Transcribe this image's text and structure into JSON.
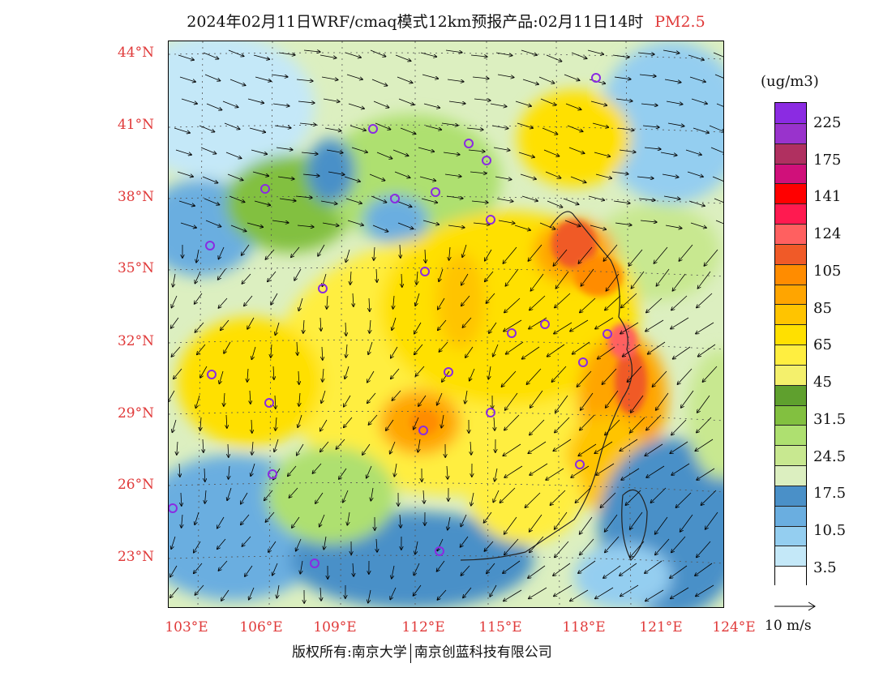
{
  "title": {
    "main": "2024年02月11日WRF/cmaq模式12km预报产品:02月11日14时",
    "pollutant": "PM2.5"
  },
  "axes": {
    "lat_labels": [
      "44°N",
      "41°N",
      "38°N",
      "35°N",
      "32°N",
      "29°N",
      "26°N",
      "23°N"
    ],
    "lon_labels": [
      "103°E",
      "106°E",
      "109°E",
      "112°E",
      "115°E",
      "118°E",
      "121°E",
      "124°E"
    ]
  },
  "legend": {
    "unit": "(ug/m3)",
    "labels": [
      "225",
      "175",
      "141",
      "124",
      "105",
      "85",
      "65",
      "45",
      "31.5",
      "24.5",
      "17.5",
      "10.5",
      "3.5"
    ],
    "colors": [
      "#8b2be2",
      "#9933cc",
      "#b03060",
      "#d0107a",
      "#ff0000",
      "#ff1a50",
      "#ff6060",
      "#f05a28",
      "#ff8c00",
      "#ffa500",
      "#ffc400",
      "#ffe000",
      "#ffee40",
      "#f4f06c",
      "#5fa02e",
      "#82c040",
      "#aee070",
      "#c8e890",
      "#dcefc0",
      "#4a90c8",
      "#6aaee0",
      "#94cef0",
      "#c4e8f8",
      "#ffffff"
    ],
    "color_meaning": "colors listed from top (highest) to bottom (lowest)"
  },
  "wind_scale": {
    "label": "10 m/s"
  },
  "footer": {
    "copyright": "版权所有:南京大学",
    "company": "南京创蓝科技有限公司"
  }
}
